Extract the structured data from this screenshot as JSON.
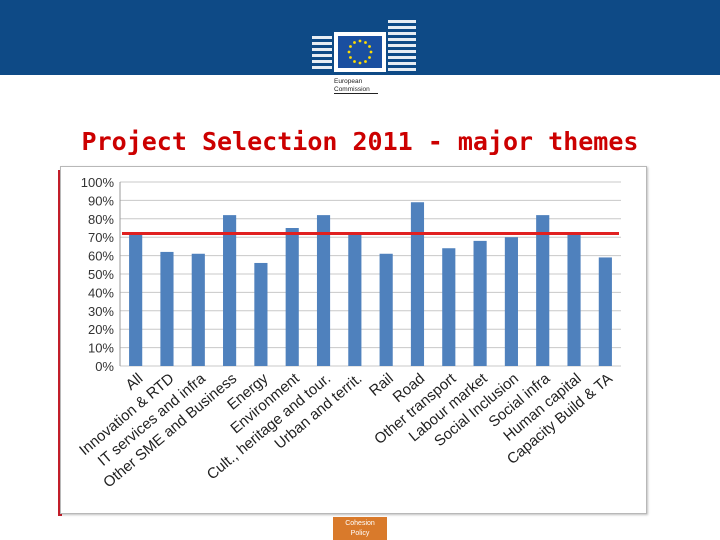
{
  "header": {
    "logo": {
      "icon": "european-commission-logo-icon",
      "line1": "European",
      "line2": "Commission",
      "flag_color": "#1a4fa0",
      "star_color": "#ffdd00"
    }
  },
  "slide": {
    "title": "Project Selection 2011 - major themes",
    "band_color": "#0e4a86",
    "title_color": "#cc0000"
  },
  "chart_data": {
    "type": "bar",
    "title": "",
    "xlabel": "",
    "ylabel": "",
    "ylim": [
      0,
      100
    ],
    "y_ticks": [
      "0%",
      "10%",
      "20%",
      "30%",
      "40%",
      "50%",
      "60%",
      "70%",
      "80%",
      "90%",
      "100%"
    ],
    "grid": true,
    "legend": "none",
    "bar_color": "#4f81bd",
    "categories": [
      "All",
      "Innovation & RTD",
      "IT services and infra",
      "Other SME and Business",
      "Energy",
      "Environment",
      "Cult., heritage and tour.",
      "Urban and territ.",
      "Rail",
      "Road",
      "Other transport",
      "Labour market",
      "Social Inclusion",
      "Social infra",
      "Human capital",
      "Capacity Build & TA"
    ],
    "values": [
      72,
      62,
      61,
      82,
      56,
      75,
      82,
      72,
      61,
      89,
      64,
      68,
      70,
      82,
      72,
      59
    ],
    "reference_line": {
      "value": 72,
      "color": "#e02020"
    }
  },
  "footer": {
    "line1": "Cohesion",
    "line2": "Policy",
    "color": "#d97a2b"
  }
}
